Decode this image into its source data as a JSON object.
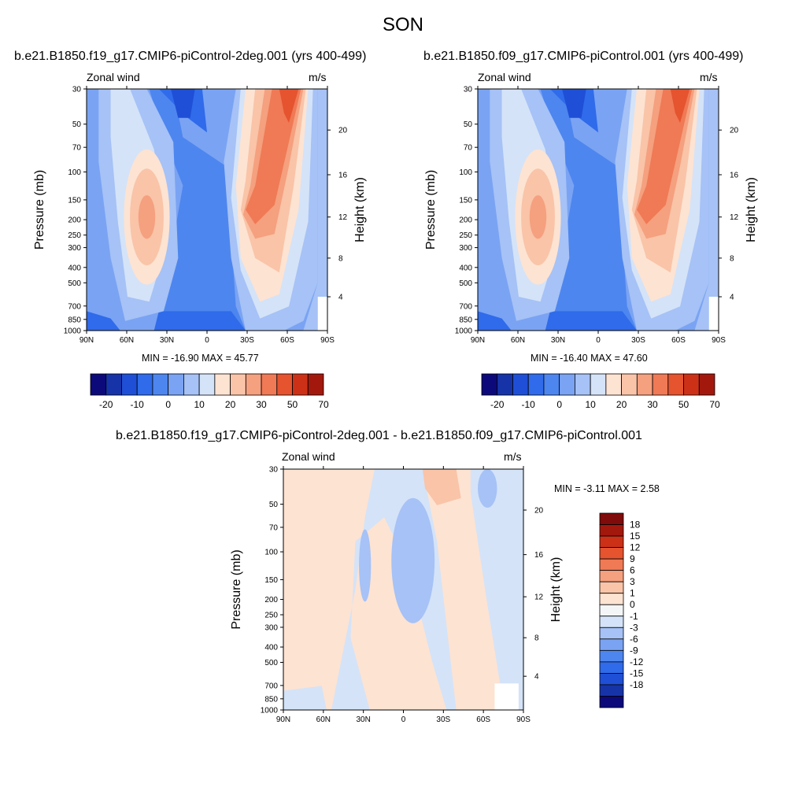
{
  "page_title": "SON",
  "colors": {
    "ramp_13": [
      "#0c0a7a",
      "#1634a8",
      "#1f4fd6",
      "#2f6bea",
      "#4e86ef",
      "#7aa3f3",
      "#a6c2f6",
      "#d4e3f8",
      "#fde3d2",
      "#f9c4a8",
      "#f5a07f",
      "#ef7a55",
      "#e5532f",
      "#cc3118",
      "#a3180d"
    ],
    "diff_ramp": [
      "#0c0a7a",
      "#1634a8",
      "#1f4fd6",
      "#2f6bea",
      "#4e86ef",
      "#7aa3f3",
      "#a6c2f6",
      "#d4e3f8",
      "#f4f5f7",
      "#fde3d2",
      "#f9c4a8",
      "#f5a07f",
      "#ef7a55",
      "#e5532f",
      "#cc3118",
      "#a3180d",
      "#7f0b0a"
    ]
  },
  "chart_data": [
    {
      "type": "heatmap",
      "title": "b.e21.B1850.f19_g17.CMIP6-piControl-2deg.001 (yrs 400-499)",
      "left_label": "Zonal wind",
      "right_label": "m/s",
      "ylabel": "Pressure (mb)",
      "ylabel_right": "Height (km)",
      "x_ticks": [
        "90N",
        "60N",
        "30N",
        "0",
        "30S",
        "60S",
        "90S"
      ],
      "y_ticks": [
        "30",
        "50",
        "70",
        "100",
        "150",
        "200",
        "250",
        "300",
        "400",
        "500",
        "700",
        "850",
        "1000"
      ],
      "y_right_ticks": [
        "20",
        "16",
        "12",
        "8",
        "4"
      ],
      "stats": "MIN = -16.90  MAX =  45.77",
      "min": -16.9,
      "max": 45.77,
      "colorbar_labels": [
        "-20",
        "-10",
        "0",
        "10",
        "20",
        "30",
        "50",
        "70"
      ]
    },
    {
      "type": "heatmap",
      "title": "b.e21.B1850.f09_g17.CMIP6-piControl.001 (yrs 400-499)",
      "left_label": "Zonal wind",
      "right_label": "m/s",
      "ylabel": "Pressure (mb)",
      "ylabel_right": "Height (km)",
      "x_ticks": [
        "90N",
        "60N",
        "30N",
        "0",
        "30S",
        "60S",
        "90S"
      ],
      "y_ticks": [
        "30",
        "50",
        "70",
        "100",
        "150",
        "200",
        "250",
        "300",
        "400",
        "500",
        "700",
        "850",
        "1000"
      ],
      "y_right_ticks": [
        "20",
        "16",
        "12",
        "8",
        "4"
      ],
      "stats": "MIN = -16.40  MAX =  47.60",
      "min": -16.4,
      "max": 47.6,
      "colorbar_labels": [
        "-20",
        "-10",
        "0",
        "10",
        "20",
        "30",
        "50",
        "70"
      ]
    },
    {
      "type": "heatmap",
      "title": "b.e21.B1850.f19_g17.CMIP6-piControl-2deg.001 - b.e21.B1850.f09_g17.CMIP6-piControl.001",
      "left_label": "Zonal wind",
      "right_label": "m/s",
      "ylabel": "Pressure (mb)",
      "ylabel_right": "Height (km)",
      "x_ticks": [
        "90N",
        "60N",
        "30N",
        "0",
        "30S",
        "60S",
        "90S"
      ],
      "y_ticks": [
        "30",
        "50",
        "70",
        "100",
        "150",
        "200",
        "250",
        "300",
        "400",
        "500",
        "700",
        "850",
        "1000"
      ],
      "y_right_ticks": [
        "20",
        "16",
        "12",
        "8",
        "4"
      ],
      "stats": "MIN =  -3.11  MAX =   2.58",
      "min": -3.11,
      "max": 2.58,
      "colorbar_labels": [
        "18",
        "15",
        "12",
        "9",
        "6",
        "3",
        "1",
        "0",
        "-1",
        "-3",
        "-6",
        "-9",
        "-12",
        "-15",
        "-18"
      ]
    }
  ]
}
